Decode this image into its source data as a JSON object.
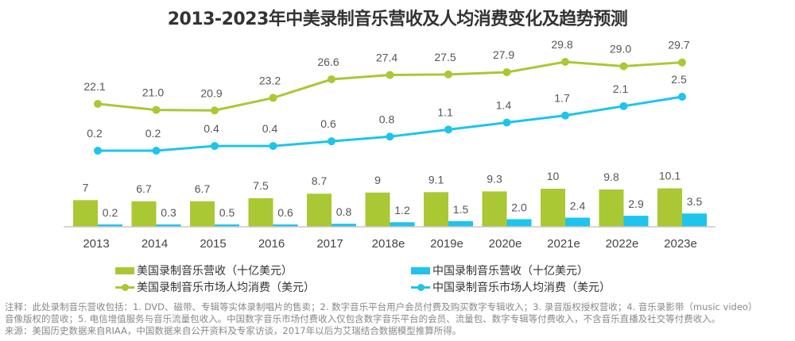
{
  "title": "2013-2023年中美录制音乐营收及人均消费变化及趋势预测",
  "colors": {
    "green": "#a9c834",
    "blue": "#1ec4ec"
  },
  "legend": {
    "us_revenue": "美国录制音乐营收（十亿美元）",
    "cn_revenue": "中国录制音乐营收（十亿美元）",
    "us_per_capita": "美国录制音乐市场人均消费（美元）",
    "cn_per_capita": "中国录制音乐市场人均消费（美元）"
  },
  "notes": [
    "注释：此处录制音乐营收包括：1. DVD、磁带、专辑等实体录制唱片的售卖；2. 数字音乐平台用户会员付费及购买数字专辑收入；3. 录音版权授权营收；4. 音乐录影带（music video）",
    "音像版权的营收；5. 电信增值服务与音乐流量包收入。中国数字音乐市场付费收入仅包含数字音乐平台的会员、流量包、数字专辑等付费收入，不含音乐直播及社交等付费收入。",
    "来源：美国历史数据来自RIAA，中国数据来自公开资料及专家访谈，2017年以后为艾瑞结合数据模型推算所得。"
  ],
  "chart_data": {
    "type": "bar+line",
    "title": "2013-2023年中美录制音乐营收及人均消费变化及趋势预测",
    "categories": [
      "2013",
      "2014",
      "2015",
      "2016",
      "2017",
      "2018e",
      "2019e",
      "2020e",
      "2021e",
      "2022e",
      "2023e"
    ],
    "series": [
      {
        "name": "美国录制音乐营收（十亿美元）",
        "type": "bar",
        "color": "#a9c834",
        "values": [
          7,
          6.7,
          6.7,
          7.5,
          8.7,
          9,
          9.1,
          9.3,
          10,
          9.8,
          10.1
        ],
        "labels": [
          "7",
          "6.7",
          "6.7",
          "7.5",
          "8.7",
          "9",
          "9.1",
          "9.3",
          "10",
          "9.8",
          "10.1"
        ]
      },
      {
        "name": "中国录制音乐营收（十亿美元）",
        "type": "bar",
        "color": "#1ec4ec",
        "values": [
          0.2,
          0.3,
          0.5,
          0.6,
          0.8,
          1.2,
          1.5,
          2.0,
          2.4,
          2.9,
          3.5
        ],
        "labels": [
          "0.2",
          "0.3",
          "0.5",
          "0.6",
          "0.8",
          "1.2",
          "1.5",
          "2.0",
          "2.4",
          "2.9",
          "3.5"
        ]
      },
      {
        "name": "美国录制音乐市场人均消费（美元）",
        "type": "line",
        "color": "#a9c834",
        "values": [
          22.1,
          21.0,
          20.9,
          23.2,
          26.6,
          27.4,
          27.5,
          27.9,
          29.8,
          29.0,
          29.7
        ],
        "labels": [
          "22.1",
          "21.0",
          "20.9",
          "23.2",
          "26.6",
          "27.4",
          "27.5",
          "27.9",
          "29.8",
          "29.0",
          "29.7"
        ]
      },
      {
        "name": "中国录制音乐市场人均消费（美元）",
        "type": "line",
        "color": "#1ec4ec",
        "values": [
          0.2,
          0.2,
          0.4,
          0.4,
          0.6,
          0.8,
          1.1,
          1.4,
          1.7,
          2.1,
          2.5
        ],
        "labels": [
          "0.2",
          "0.2",
          "0.4",
          "0.4",
          "0.6",
          "0.8",
          "1.1",
          "1.4",
          "1.7",
          "2.1",
          "2.5"
        ]
      }
    ],
    "xlabel": "",
    "ylabel": "",
    "grid": false,
    "legend_position": "bottom"
  }
}
